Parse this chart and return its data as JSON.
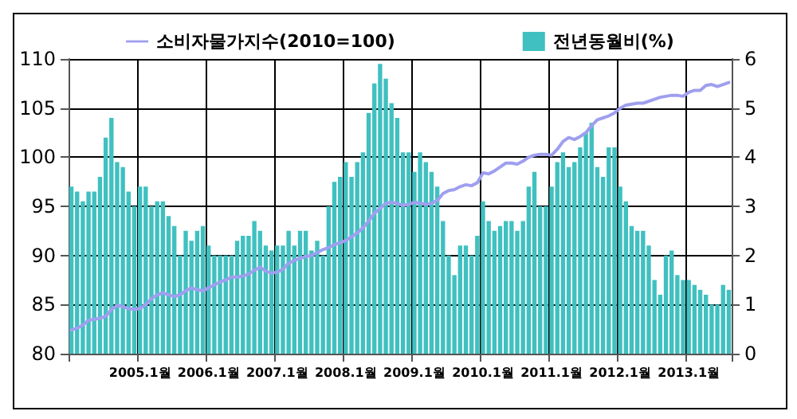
{
  "chart_data": {
    "type": "bar",
    "categories": [
      null,
      null,
      null,
      null,
      null,
      null,
      null,
      null,
      null,
      null,
      null,
      null,
      "2005.1월",
      null,
      null,
      null,
      null,
      null,
      null,
      null,
      null,
      null,
      null,
      null,
      "2006.1월",
      null,
      null,
      null,
      null,
      null,
      null,
      null,
      null,
      null,
      null,
      null,
      "2007.1월",
      null,
      null,
      null,
      null,
      null,
      null,
      null,
      null,
      null,
      null,
      null,
      "2008.1월",
      null,
      null,
      null,
      null,
      null,
      null,
      null,
      null,
      null,
      null,
      null,
      "2009.1월",
      null,
      null,
      null,
      null,
      null,
      null,
      null,
      null,
      null,
      null,
      null,
      "2010.1월",
      null,
      null,
      null,
      null,
      null,
      null,
      null,
      null,
      null,
      null,
      null,
      "2011.1월",
      null,
      null,
      null,
      null,
      null,
      null,
      null,
      null,
      null,
      null,
      null,
      "2012.1월",
      null,
      null,
      null,
      null,
      null,
      null,
      null,
      null,
      null,
      null,
      null,
      "2013.1월",
      null,
      null,
      null,
      null,
      null,
      null,
      null
    ],
    "series": [
      {
        "name": "소비자물가지수(2010=100)",
        "type": "line",
        "axis": "y",
        "color": "#9f9fef",
        "values": [
          82.4,
          82.6,
          82.9,
          83.4,
          83.5,
          83.6,
          83.8,
          84.5,
          84.9,
          84.8,
          84.6,
          84.5,
          84.6,
          85.0,
          85.6,
          86.0,
          86.2,
          86.0,
          85.8,
          86.0,
          86.4,
          86.7,
          86.5,
          86.4,
          86.7,
          87.0,
          87.3,
          87.5,
          87.8,
          87.8,
          87.9,
          88.1,
          88.5,
          88.8,
          88.4,
          88.2,
          88.3,
          88.6,
          89.2,
          89.5,
          89.7,
          89.9,
          90.0,
          90.3,
          90.6,
          90.8,
          91.1,
          91.3,
          91.5,
          91.9,
          92.3,
          92.8,
          93.5,
          94.3,
          94.8,
          95.3,
          95.4,
          95.3,
          95.1,
          95.2,
          95.4,
          95.3,
          95.2,
          95.3,
          95.6,
          96.3,
          96.6,
          96.7,
          97.0,
          97.2,
          97.1,
          97.4,
          98.4,
          98.3,
          98.6,
          99.0,
          99.4,
          99.4,
          99.3,
          99.6,
          100.0,
          100.2,
          100.3,
          100.3,
          100.2,
          100.8,
          101.6,
          102.0,
          101.8,
          102.1,
          102.5,
          103.2,
          103.8,
          104.0,
          104.2,
          104.5,
          105.0,
          105.3,
          105.4,
          105.5,
          105.5,
          105.7,
          105.9,
          106.1,
          106.2,
          106.3,
          106.3,
          106.2,
          106.6,
          106.8,
          106.8,
          107.3,
          107.4,
          107.2,
          107.4,
          107.6
        ]
      },
      {
        "name": "전년동월비(%)",
        "type": "bar",
        "axis": "y2",
        "color": "#40c0c0",
        "values": [
          3.4,
          3.3,
          3.1,
          3.3,
          3.3,
          3.6,
          4.4,
          4.8,
          3.9,
          3.8,
          3.3,
          3.0,
          3.4,
          3.4,
          3.0,
          3.1,
          3.1,
          2.8,
          2.6,
          2.0,
          2.5,
          2.3,
          2.5,
          2.6,
          2.2,
          2.0,
          2.0,
          2.0,
          2.0,
          2.3,
          2.4,
          2.4,
          2.7,
          2.5,
          2.2,
          2.1,
          2.2,
          2.2,
          2.5,
          2.2,
          2.5,
          2.5,
          2.1,
          2.3,
          2.0,
          3.0,
          3.5,
          3.6,
          3.9,
          3.6,
          3.9,
          4.1,
          4.9,
          5.5,
          5.9,
          5.6,
          5.1,
          4.8,
          4.1,
          4.1,
          3.7,
          4.1,
          3.9,
          3.7,
          3.4,
          2.7,
          2.0,
          1.6,
          2.2,
          2.2,
          2.0,
          2.4,
          3.1,
          2.7,
          2.5,
          2.6,
          2.7,
          2.7,
          2.5,
          2.7,
          3.4,
          3.7,
          3.0,
          3.0,
          3.4,
          3.9,
          4.1,
          3.8,
          3.9,
          4.2,
          4.5,
          4.7,
          3.8,
          3.6,
          4.2,
          4.2,
          3.4,
          3.1,
          2.6,
          2.5,
          2.5,
          2.2,
          1.5,
          1.2,
          2.0,
          2.1,
          1.6,
          1.5,
          1.5,
          1.4,
          1.3,
          1.2,
          1.0,
          1.0,
          1.4,
          1.3
        ]
      }
    ],
    "ylim": [
      80,
      110
    ],
    "yticks": [
      80,
      85,
      90,
      95,
      100,
      105,
      110
    ],
    "y2lim": [
      0,
      6
    ],
    "y2ticks": [
      0,
      1,
      2,
      3,
      4,
      5,
      6
    ],
    "grid": true,
    "legend": "top",
    "marker": "none",
    "line_style": "solid"
  }
}
